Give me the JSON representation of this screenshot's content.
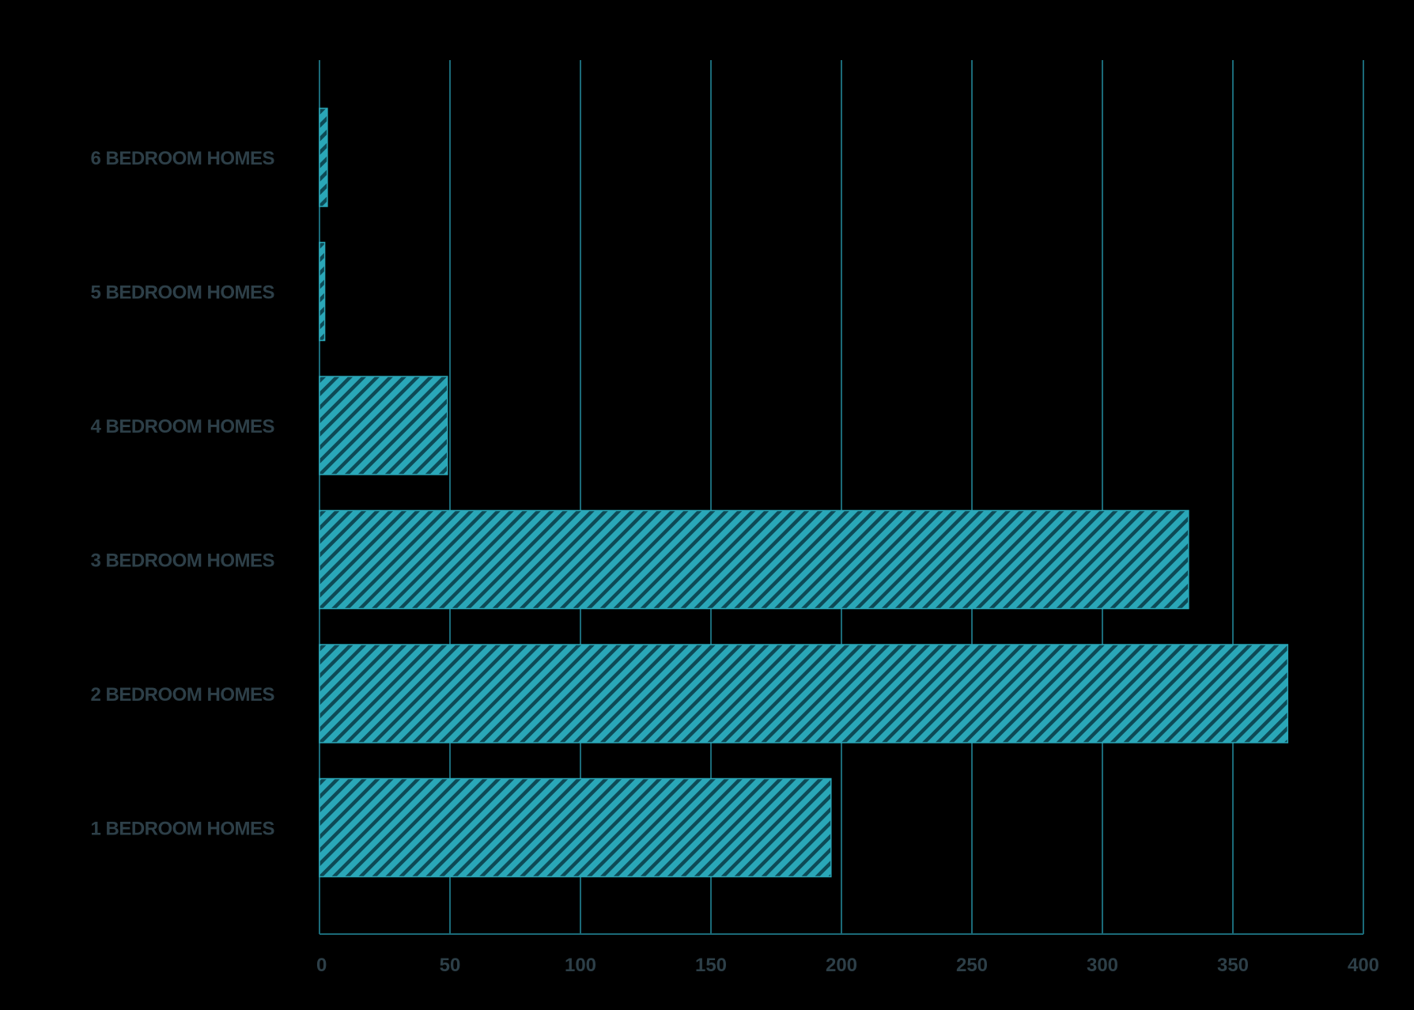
{
  "chart_data": {
    "type": "bar",
    "orientation": "horizontal",
    "categories": [
      "6 BEDROOM HOMES",
      "5 BEDROOM HOMES",
      "4 BEDROOM HOMES",
      "3 BEDROOM HOMES",
      "2 BEDROOM HOMES",
      "1 BEDROOM HOMES"
    ],
    "values": [
      3,
      2,
      49,
      333,
      371,
      196
    ],
    "xlim": [
      0,
      400
    ],
    "xticks": [
      0,
      50,
      100,
      150,
      200,
      250,
      300,
      350,
      400
    ],
    "title": "",
    "xlabel": "",
    "ylabel": "",
    "grid": "vertical",
    "legend": "none"
  },
  "colors": {
    "background": "#000000",
    "bar_fill": "#2aa7b8",
    "bar_hatch": "#0d4a56",
    "gridline": "#1b6a78",
    "label_text": "#2d3f48"
  }
}
